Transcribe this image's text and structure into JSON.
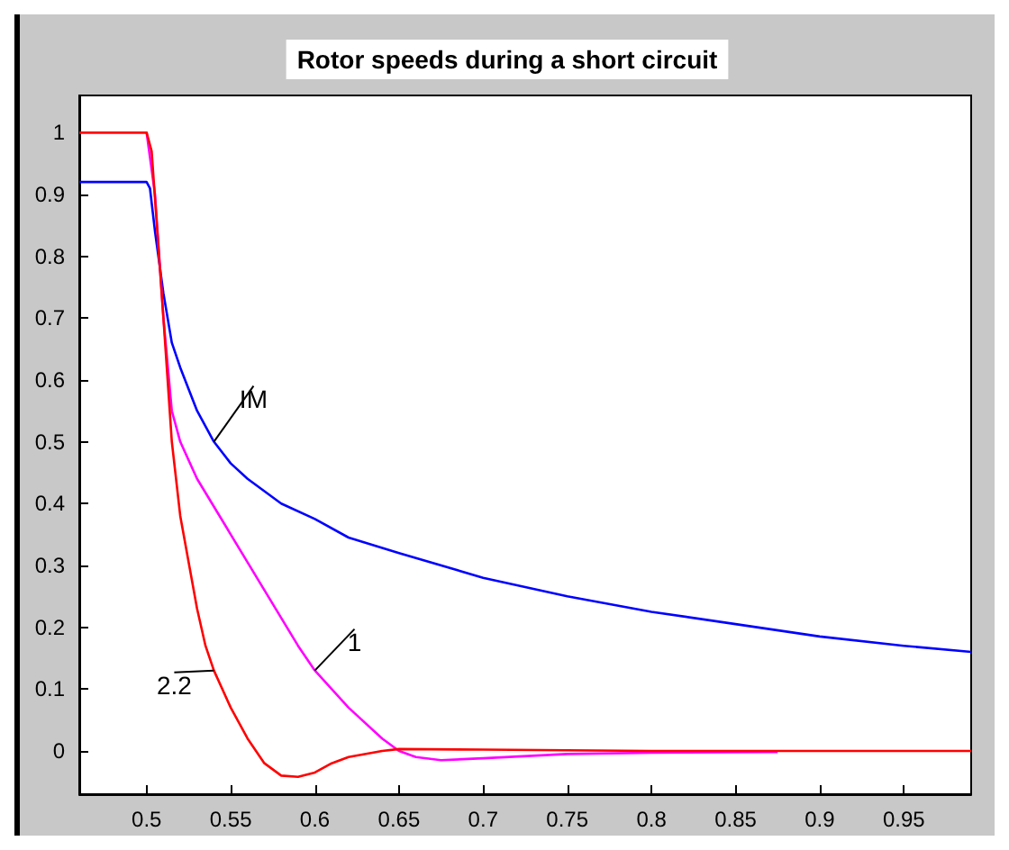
{
  "chart_data": {
    "type": "line",
    "title": "Rotor speeds during a short circuit",
    "xlim": [
      0.46,
      0.99
    ],
    "xticks": [
      0.5,
      0.55,
      0.6,
      0.65,
      0.7,
      0.75,
      0.8,
      0.85,
      0.9,
      0.95
    ],
    "ylim": [
      -0.07,
      1.06
    ],
    "yticks": [
      0,
      0.1,
      0.2,
      0.3,
      0.4,
      0.5,
      0.6,
      0.7,
      0.8,
      0.9,
      1
    ],
    "grid": false,
    "legend": false,
    "marker": "none",
    "line_style": "solid",
    "series": [
      {
        "name": "IM",
        "color": "#0000ff",
        "x": [
          0.46,
          0.5,
          0.502,
          0.505,
          0.51,
          0.515,
          0.52,
          0.53,
          0.54,
          0.55,
          0.56,
          0.58,
          0.6,
          0.62,
          0.65,
          0.7,
          0.75,
          0.8,
          0.85,
          0.9,
          0.95,
          0.99
        ],
        "values": [
          0.92,
          0.92,
          0.91,
          0.84,
          0.74,
          0.66,
          0.62,
          0.55,
          0.5,
          0.465,
          0.44,
          0.4,
          0.375,
          0.345,
          0.32,
          0.28,
          0.25,
          0.225,
          0.205,
          0.185,
          0.17,
          0.16
        ]
      },
      {
        "name": "1",
        "color": "#ff00ff",
        "x": [
          0.46,
          0.5,
          0.505,
          0.51,
          0.515,
          0.52,
          0.53,
          0.55,
          0.57,
          0.59,
          0.6,
          0.62,
          0.64,
          0.65,
          0.66,
          0.675,
          0.7,
          0.75,
          0.8,
          0.875
        ],
        "values": [
          1,
          1,
          0.9,
          0.7,
          0.55,
          0.5,
          0.44,
          0.35,
          0.26,
          0.17,
          0.13,
          0.07,
          0.02,
          0,
          -0.01,
          -0.015,
          -0.012,
          -0.005,
          -0.003,
          -0.002
        ]
      },
      {
        "name": "2.2",
        "color": "#ff0000",
        "x": [
          0.46,
          0.5,
          0.503,
          0.51,
          0.515,
          0.52,
          0.53,
          0.535,
          0.54,
          0.55,
          0.56,
          0.57,
          0.58,
          0.59,
          0.6,
          0.61,
          0.62,
          0.64,
          0.65,
          0.7,
          0.8,
          0.99
        ],
        "values": [
          1,
          1,
          0.97,
          0.7,
          0.5,
          0.38,
          0.23,
          0.17,
          0.13,
          0.07,
          0.02,
          -0.02,
          -0.04,
          -0.042,
          -0.035,
          -0.02,
          -0.01,
          0,
          0.003,
          0.002,
          0,
          0
        ]
      }
    ]
  }
}
